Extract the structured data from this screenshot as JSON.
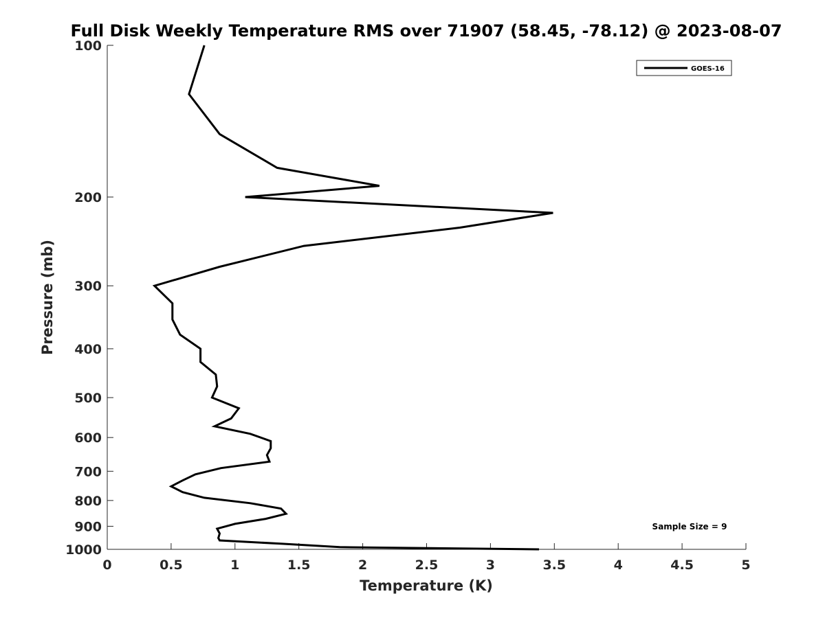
{
  "chart_data": {
    "type": "line",
    "title": "Full Disk Weekly Temperature RMS over 71907 (58.45, -78.12) @ 2023-08-07",
    "xlabel": "Temperature (K)",
    "ylabel": "Pressure (mb)",
    "xlim": [
      0,
      5
    ],
    "ylim": [
      100,
      1000
    ],
    "y_scale": "log",
    "y_reversed": true,
    "grid": false,
    "legend_position": "top-right",
    "x_ticks": [
      "0",
      "0.5",
      "1",
      "1.5",
      "2",
      "2.5",
      "3",
      "3.5",
      "4",
      "4.5",
      "5"
    ],
    "y_ticks": [
      "100",
      "200",
      "300",
      "400",
      "500",
      "600",
      "700",
      "800",
      "900",
      "1000"
    ],
    "annotation": "Sample Size = 9",
    "series": [
      {
        "name": "GOES-16",
        "color": "#000000",
        "points": [
          [
            0.76,
            100
          ],
          [
            0.64,
            125
          ],
          [
            0.88,
            150
          ],
          [
            1.33,
            175
          ],
          [
            2.13,
            190
          ],
          [
            1.08,
            200
          ],
          [
            3.49,
            215
          ],
          [
            2.76,
            230
          ],
          [
            1.54,
            250
          ],
          [
            0.88,
            275
          ],
          [
            0.37,
            300
          ],
          [
            0.51,
            325
          ],
          [
            0.51,
            350
          ],
          [
            0.57,
            375
          ],
          [
            0.73,
            400
          ],
          [
            0.73,
            425
          ],
          [
            0.85,
            450
          ],
          [
            0.86,
            475
          ],
          [
            0.82,
            500
          ],
          [
            1.03,
            525
          ],
          [
            0.97,
            550
          ],
          [
            0.84,
            570
          ],
          [
            1.12,
            590
          ],
          [
            1.28,
            610
          ],
          [
            1.28,
            630
          ],
          [
            1.25,
            650
          ],
          [
            1.27,
            670
          ],
          [
            0.89,
            690
          ],
          [
            0.69,
            710
          ],
          [
            0.59,
            730
          ],
          [
            0.5,
            750
          ],
          [
            0.59,
            770
          ],
          [
            0.76,
            790
          ],
          [
            1.12,
            810
          ],
          [
            1.36,
            830
          ],
          [
            1.4,
            850
          ],
          [
            1.24,
            870
          ],
          [
            1.0,
            890
          ],
          [
            0.86,
            910
          ],
          [
            0.88,
            930
          ],
          [
            0.87,
            950
          ],
          [
            0.88,
            960
          ],
          [
            1.37,
            975
          ],
          [
            1.82,
            990
          ],
          [
            3.38,
            1000
          ]
        ]
      }
    ]
  }
}
